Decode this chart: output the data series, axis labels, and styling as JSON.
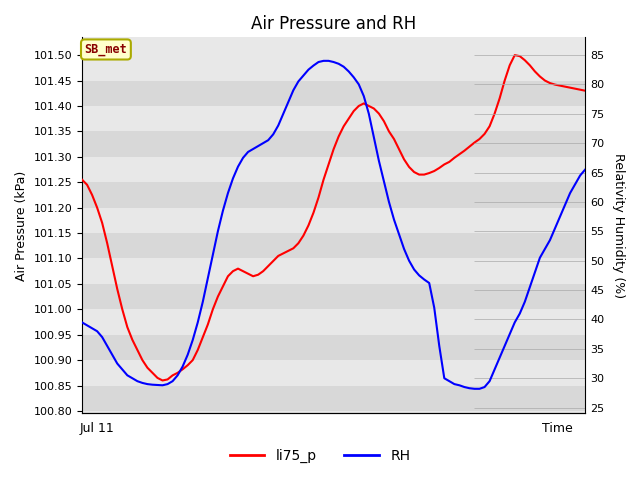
{
  "title": "Air Pressure and RH",
  "xlabel_right": "Time",
  "xlabel_left": "Jul 11",
  "ylabel_left": "Air Pressure (kPa)",
  "ylabel_right": "Relativity Humidity (%)",
  "ylim_left": [
    100.795,
    101.535
  ],
  "ylim_right": [
    24.0,
    88.0
  ],
  "yticks_left": [
    100.8,
    100.85,
    100.9,
    100.95,
    101.0,
    101.05,
    101.1,
    101.15,
    101.2,
    101.25,
    101.3,
    101.35,
    101.4,
    101.45,
    101.5
  ],
  "yticks_right": [
    25,
    30,
    35,
    40,
    45,
    50,
    55,
    60,
    65,
    70,
    75,
    80,
    85
  ],
  "legend_entries": [
    "li75_p",
    "RH"
  ],
  "annotation_text": "SB_met",
  "annotation_facecolor": "#ffffcc",
  "annotation_edgecolor": "#aaaa00",
  "annotation_textcolor": "#880000",
  "plot_bg_color": "#e8e8e8",
  "stripe_color": "#d8d8d8",
  "line_color_pressure": "red",
  "line_color_rh": "blue",
  "line_width": 1.5,
  "pressure_x": [
    0,
    1,
    2,
    3,
    4,
    5,
    6,
    7,
    8,
    9,
    10,
    11,
    12,
    13,
    14,
    15,
    16,
    17,
    18,
    19,
    20,
    21,
    22,
    23,
    24,
    25,
    26,
    27,
    28,
    29,
    30,
    31,
    32,
    33,
    34,
    35,
    36,
    37,
    38,
    39,
    40,
    41,
    42,
    43,
    44,
    45,
    46,
    47,
    48,
    49,
    50,
    51,
    52,
    53,
    54,
    55,
    56,
    57,
    58,
    59,
    60,
    61,
    62,
    63,
    64,
    65,
    66,
    67,
    68,
    69,
    70,
    71,
    72,
    73,
    74,
    75,
    76,
    77,
    78,
    79,
    80,
    81,
    82,
    83,
    84,
    85,
    86,
    87,
    88,
    89,
    90,
    91,
    92,
    93,
    94,
    95,
    96,
    97,
    98,
    99,
    100
  ],
  "pressure_y": [
    101.255,
    101.245,
    101.225,
    101.2,
    101.17,
    101.13,
    101.085,
    101.04,
    101.0,
    100.965,
    100.94,
    100.92,
    100.9,
    100.885,
    100.875,
    100.865,
    100.86,
    100.862,
    100.87,
    100.875,
    100.882,
    100.89,
    100.9,
    100.92,
    100.945,
    100.97,
    101.0,
    101.025,
    101.045,
    101.065,
    101.075,
    101.08,
    101.075,
    101.07,
    101.065,
    101.068,
    101.075,
    101.085,
    101.095,
    101.105,
    101.11,
    101.115,
    101.12,
    101.13,
    101.145,
    101.165,
    101.19,
    101.22,
    101.255,
    101.285,
    101.315,
    101.34,
    101.36,
    101.375,
    101.39,
    101.4,
    101.405,
    101.4,
    101.395,
    101.385,
    101.37,
    101.35,
    101.335,
    101.315,
    101.295,
    101.28,
    101.27,
    101.265,
    101.265,
    101.268,
    101.272,
    101.278,
    101.285,
    101.29,
    101.298,
    101.305,
    101.312,
    101.32,
    101.328,
    101.335,
    101.345,
    101.36,
    101.385,
    101.415,
    101.45,
    101.48,
    101.5,
    101.498,
    101.49,
    101.48,
    101.468,
    101.458,
    101.45,
    101.445,
    101.442,
    101.44,
    101.438,
    101.436,
    101.434,
    101.432,
    101.43
  ],
  "rh_x": [
    0,
    1,
    2,
    3,
    4,
    5,
    6,
    7,
    8,
    9,
    10,
    11,
    12,
    13,
    14,
    15,
    16,
    17,
    18,
    19,
    20,
    21,
    22,
    23,
    24,
    25,
    26,
    27,
    28,
    29,
    30,
    31,
    32,
    33,
    34,
    35,
    36,
    37,
    38,
    39,
    40,
    41,
    42,
    43,
    44,
    45,
    46,
    47,
    48,
    49,
    50,
    51,
    52,
    53,
    54,
    55,
    56,
    57,
    58,
    59,
    60,
    61,
    62,
    63,
    64,
    65,
    66,
    67,
    68,
    69,
    70,
    71,
    72,
    73,
    74,
    75,
    76,
    77,
    78,
    79,
    80,
    81,
    82,
    83,
    84,
    85,
    86,
    87,
    88,
    89,
    90,
    91,
    92,
    93,
    94,
    95,
    96,
    97,
    98,
    99,
    100
  ],
  "rh_y": [
    39.5,
    39.0,
    38.5,
    38.0,
    37.0,
    35.5,
    34.0,
    32.5,
    31.5,
    30.5,
    30.0,
    29.5,
    29.2,
    29.0,
    28.9,
    28.85,
    28.8,
    29.0,
    29.5,
    30.5,
    32.0,
    34.0,
    36.5,
    39.5,
    43.0,
    47.0,
    51.0,
    55.0,
    58.5,
    61.5,
    64.0,
    66.0,
    67.5,
    68.5,
    69.0,
    69.5,
    70.0,
    70.5,
    71.5,
    73.0,
    75.0,
    77.0,
    79.0,
    80.5,
    81.5,
    82.5,
    83.2,
    83.8,
    84.0,
    84.0,
    83.8,
    83.5,
    83.0,
    82.2,
    81.2,
    80.0,
    78.0,
    75.0,
    71.0,
    67.0,
    63.5,
    60.0,
    57.0,
    54.5,
    52.0,
    50.0,
    48.5,
    47.5,
    46.8,
    46.2,
    42.0,
    35.5,
    30.0,
    29.5,
    29.0,
    28.8,
    28.5,
    28.3,
    28.2,
    28.2,
    28.5,
    29.5,
    31.5,
    33.5,
    35.5,
    37.5,
    39.5,
    41.0,
    43.0,
    45.5,
    48.0,
    50.5,
    52.0,
    53.5,
    55.5,
    57.5,
    59.5,
    61.5,
    63.0,
    64.5,
    65.5
  ]
}
